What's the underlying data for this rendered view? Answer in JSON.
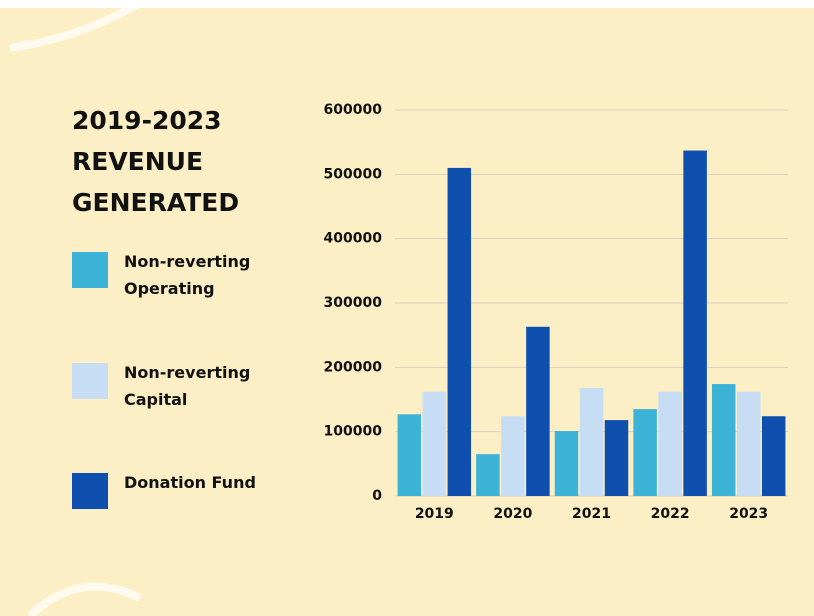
{
  "chart_data": {
    "type": "bar",
    "title": "2019-2023 REVENUE GENERATED",
    "categories": [
      "2019",
      "2020",
      "2021",
      "2022",
      "2023"
    ],
    "series": [
      {
        "name": "Non-reverting Operating",
        "color": "#3cb3d6",
        "values": [
          127000,
          65000,
          101000,
          135000,
          174000
        ]
      },
      {
        "name": "Non-reverting Capital",
        "color": "#c7ddf4",
        "values": [
          162000,
          124000,
          168000,
          162000,
          162000
        ]
      },
      {
        "name": "Donation Fund",
        "color": "#0f4fae",
        "values": [
          510000,
          263000,
          118000,
          537000,
          124000
        ]
      }
    ],
    "ylim": [
      0,
      600000
    ],
    "yticks": [
      0,
      100000,
      200000,
      300000,
      400000,
      500000,
      600000
    ],
    "grid": true
  }
}
